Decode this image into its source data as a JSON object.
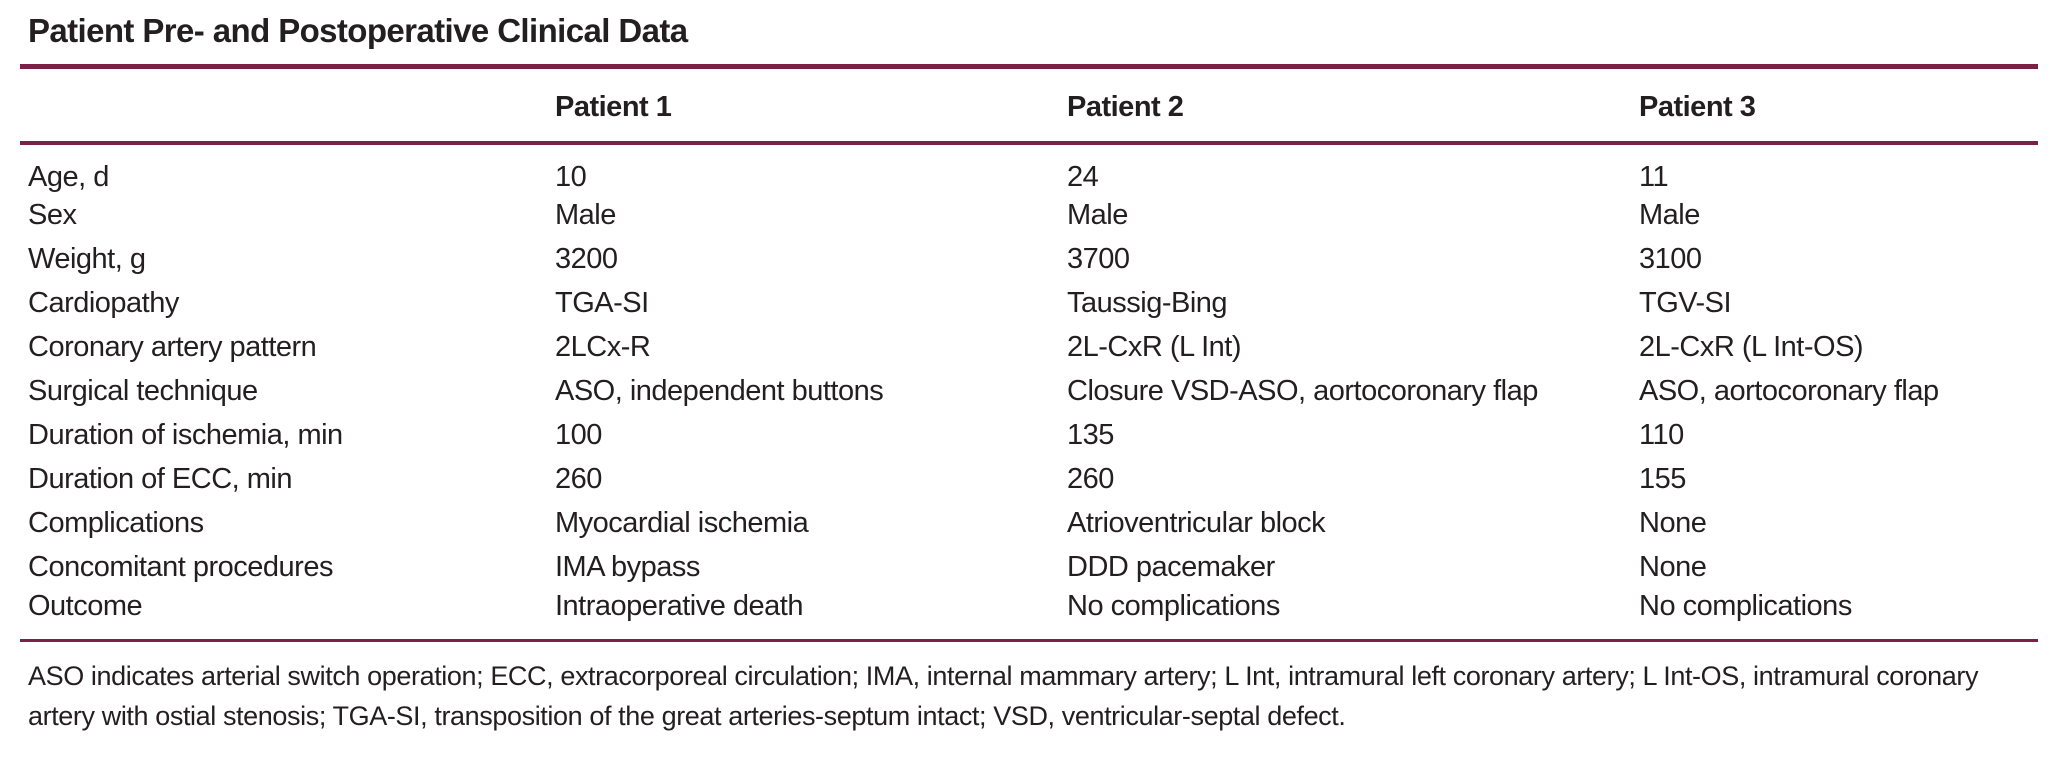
{
  "table": {
    "title": "Patient Pre- and Postoperative Clinical Data",
    "column_headers": [
      "Patient 1",
      "Patient 2",
      "Patient 3"
    ],
    "rows": [
      {
        "label": "Age, d",
        "values": [
          "10",
          "24",
          "11"
        ]
      },
      {
        "label": "Sex",
        "values": [
          "Male",
          "Male",
          "Male"
        ]
      },
      {
        "label": "Weight, g",
        "values": [
          "3200",
          "3700",
          "3100"
        ]
      },
      {
        "label": "Cardiopathy",
        "values": [
          "TGA-SI",
          "Taussig-Bing",
          "TGV-SI"
        ]
      },
      {
        "label": "Coronary artery pattern",
        "values": [
          "2LCx-R",
          "2L-CxR (L Int)",
          "2L-CxR (L Int-OS)"
        ]
      },
      {
        "label": "Surgical technique",
        "values": [
          "ASO, independent buttons",
          "Closure VSD-ASO, aortocoronary flap",
          "ASO, aortocoronary flap"
        ]
      },
      {
        "label": "Duration of ischemia, min",
        "values": [
          "100",
          "135",
          "110"
        ]
      },
      {
        "label": "Duration of ECC, min",
        "values": [
          "260",
          "260",
          "155"
        ]
      },
      {
        "label": "Complications",
        "values": [
          "Myocardial ischemia",
          "Atrioventricular block",
          "None"
        ]
      },
      {
        "label": "Concomitant procedures",
        "values": [
          "IMA bypass",
          "DDD pacemaker",
          "None"
        ]
      },
      {
        "label": "Outcome",
        "values": [
          "Intraoperative death",
          "No complications",
          "No complications"
        ]
      }
    ],
    "footnote": "ASO indicates arterial switch operation; ECC, extracorporeal circulation; IMA, internal mammary artery; L Int, intramural left coronary artery; L Int-OS, intramural coronary artery with ostial stenosis; TGA-SI, transposition of the great arteries-septum intact; VSD, ventricular-septal defect."
  },
  "colors": {
    "rule": "#7b2147",
    "text": "#231f20",
    "background": "#ffffff"
  }
}
